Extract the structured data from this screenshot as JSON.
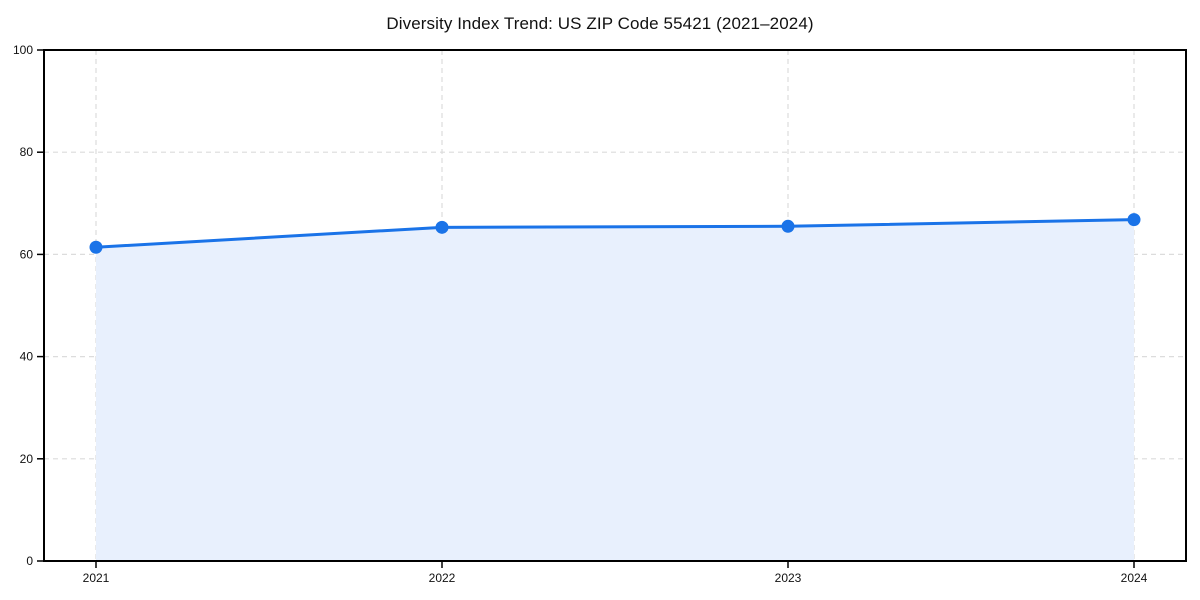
{
  "page": {
    "title": "Diversity Index Trend: US ZIP Code 55421 (2021–2024)"
  },
  "chart_data": {
    "type": "line",
    "title": "Diversity Index Trend: US ZIP Code 55421 (2021–2024)",
    "xlabel": "",
    "ylabel": "",
    "x": [
      "2021",
      "2022",
      "2023",
      "2024"
    ],
    "series": [
      {
        "name": "Diversity Index",
        "values": [
          61.4,
          65.3,
          65.5,
          66.8
        ]
      }
    ],
    "ylim": [
      0,
      100
    ],
    "yticks": [
      0,
      20,
      40,
      60,
      80,
      100
    ],
    "xticks": [
      "2021",
      "2022",
      "2023",
      "2024"
    ],
    "grid": true,
    "grid_style": "dashed",
    "area_fill": true,
    "markers": true,
    "legend": "none",
    "colors": {
      "line": "#1a73e8",
      "fill": "#e8f0fd",
      "grid": "#dcdcdc",
      "frame": "#000000",
      "tick_label": "#111111",
      "background": "#ffffff"
    }
  }
}
